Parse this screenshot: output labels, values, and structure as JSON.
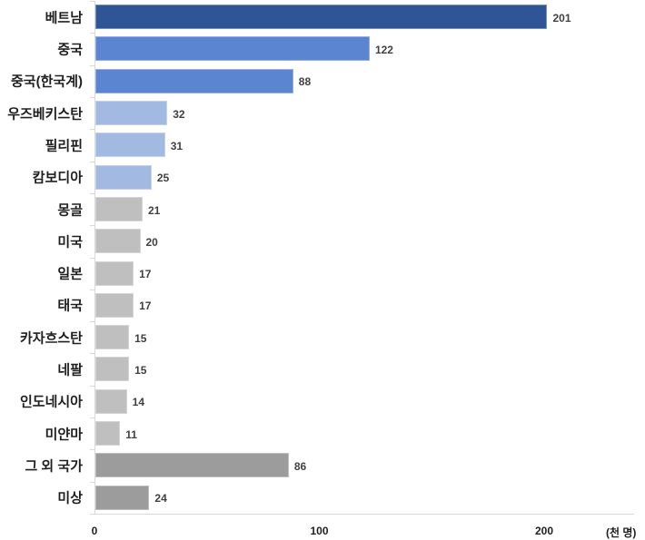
{
  "chart_data": {
    "type": "bar",
    "orientation": "horizontal",
    "title": "",
    "categories": [
      "베트남",
      "중국",
      "중국(한국계)",
      "우즈베키스탄",
      "필리핀",
      "캄보디아",
      "몽골",
      "미국",
      "일본",
      "태국",
      "카자흐스탄",
      "네팔",
      "인도네시아",
      "미얀마",
      "그 외 국가",
      "미상"
    ],
    "values": [
      201,
      122,
      88,
      32,
      31,
      25,
      21,
      20,
      17,
      17,
      15,
      15,
      14,
      11,
      86,
      24
    ],
    "colors": [
      "#2F5597",
      "#5B85D0",
      "#5B85D0",
      "#A2B9E2",
      "#A2B9E2",
      "#A2B9E2",
      "#BFBFBF",
      "#BFBFBF",
      "#BFBFBF",
      "#BFBFBF",
      "#BFBFBF",
      "#BFBFBF",
      "#BFBFBF",
      "#BFBFBF",
      "#9C9C9C",
      "#9C9C9C"
    ],
    "xlabel": "(천 명)",
    "ylabel": "",
    "xticks": [
      0,
      100,
      200
    ],
    "xlim": [
      0,
      240
    ],
    "grid": false,
    "legend": null,
    "data_labels": true
  }
}
